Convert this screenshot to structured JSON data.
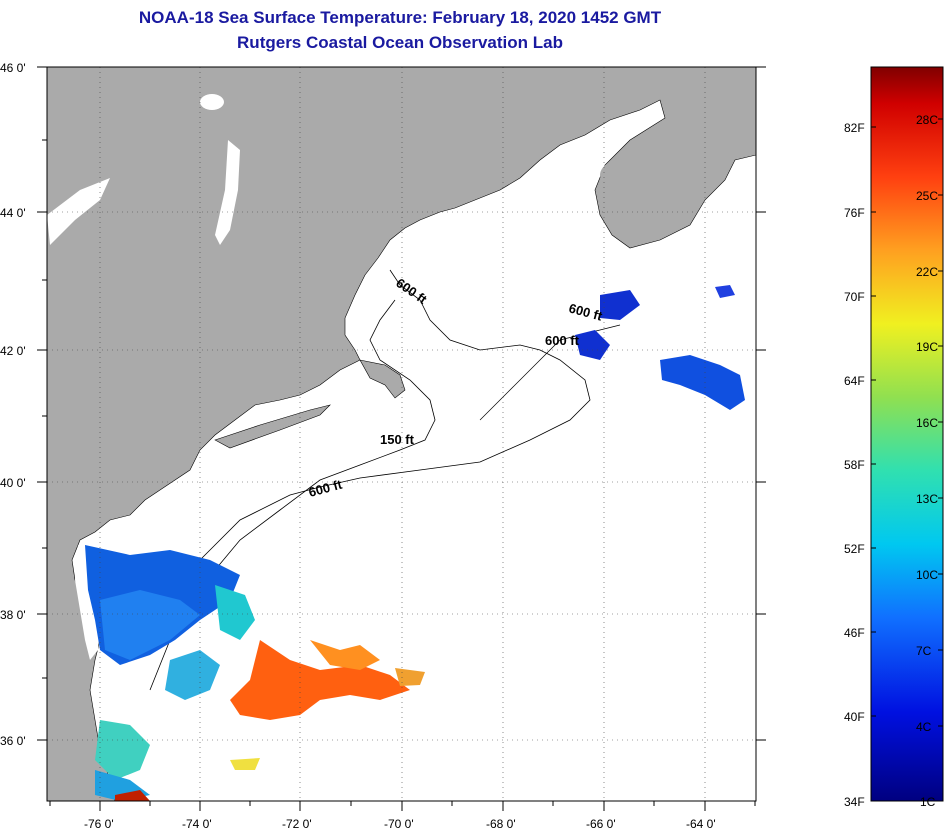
{
  "title": {
    "line1": "NOAA-18 Sea Surface Temperature:  February 18, 2020 1452 GMT",
    "line2": "Rutgers Coastal Ocean Observation Lab"
  },
  "map": {
    "lat_range": [
      35,
      46
    ],
    "lon_range": [
      -77,
      -63
    ],
    "lat_ticks": [
      "46 0'",
      "44 0'",
      "42 0'",
      "40 0'",
      "38 0'",
      "36 0'"
    ],
    "lon_ticks": [
      "-76 0'",
      "-74 0'",
      "-72 0'",
      "-70 0'",
      "-68 0'",
      "-66 0'",
      "-64 0'"
    ],
    "contour_labels": [
      "600 ft",
      "600 ft",
      "600 ft",
      "150 ft",
      "600 ft"
    ],
    "land_color": "#aaaaaa",
    "ocean_color": "#ffffff"
  },
  "colorbar": {
    "fahrenheit": [
      "82F",
      "76F",
      "70F",
      "64F",
      "58F",
      "52F",
      "46F",
      "40F",
      "34F"
    ],
    "celsius": [
      "28C",
      "25C",
      "22C",
      "19C",
      "16C",
      "13C",
      "10C",
      "7C",
      "4C",
      "1C"
    ]
  }
}
